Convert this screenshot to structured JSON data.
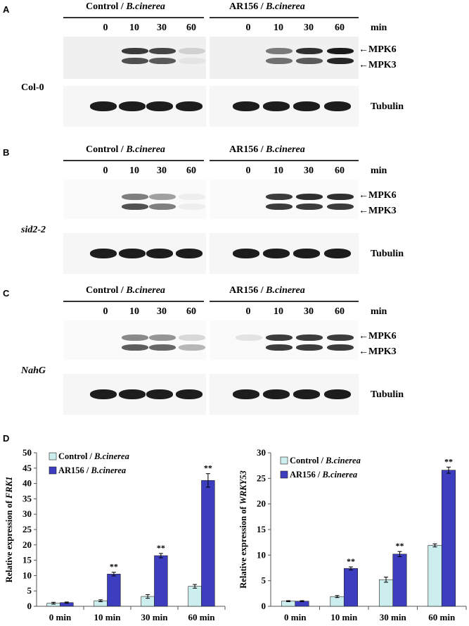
{
  "figure": {
    "panels": [
      {
        "letter": "A",
        "genotype": "Col-0",
        "genotype_italic": false,
        "control": {
          "strain": "Control",
          "sep": "/",
          "pathogen": "B.cinerea"
        },
        "treated": {
          "strain": "AR156",
          "sep": "/",
          "pathogen": "B.cinerea"
        },
        "timepoints": [
          "0",
          "10",
          "30",
          "60",
          "0",
          "10",
          "30",
          "60"
        ],
        "unit": "min",
        "markers": {
          "mpk6": "MPK6",
          "mpk3": "MPK3",
          "tubulin": "Tubulin"
        },
        "mpk6_intensity": [
          0,
          0.85,
          0.8,
          0.15,
          0,
          0.55,
          0.9,
          1.0
        ],
        "mpk3_intensity": [
          0,
          0.75,
          0.7,
          0.05,
          0,
          0.6,
          0.7,
          0.95
        ]
      },
      {
        "letter": "B",
        "genotype": "sid2-2",
        "genotype_italic": true,
        "control": {
          "strain": "Control",
          "sep": "/",
          "pathogen": "B.cinerea"
        },
        "treated": {
          "strain": "AR156",
          "sep": "/",
          "pathogen": "B.cinerea"
        },
        "timepoints": [
          "0",
          "10",
          "30",
          "60",
          "0",
          "10",
          "30",
          "60"
        ],
        "unit": "min",
        "markers": {
          "mpk6": "MPK6",
          "mpk3": "MPK3",
          "tubulin": "Tubulin"
        },
        "mpk6_intensity": [
          0,
          0.55,
          0.4,
          0.05,
          0,
          0.85,
          0.9,
          0.9
        ],
        "mpk3_intensity": [
          0,
          0.75,
          0.55,
          0.05,
          0,
          0.85,
          0.85,
          0.85
        ]
      },
      {
        "letter": "C",
        "genotype": "NahG",
        "genotype_italic": true,
        "control": {
          "strain": "Control",
          "sep": "/",
          "pathogen": "B.cinerea"
        },
        "treated": {
          "strain": "AR156",
          "sep": "/",
          "pathogen": "B.cinerea"
        },
        "timepoints": [
          "0",
          "10",
          "30",
          "60",
          "0",
          "10",
          "30",
          "60"
        ],
        "unit": "min",
        "markers": {
          "mpk6": "MPK6",
          "mpk3": "MPK3",
          "tubulin": "Tubulin"
        },
        "mpk6_intensity": [
          0,
          0.5,
          0.45,
          0.15,
          0.1,
          0.85,
          0.85,
          0.85
        ],
        "mpk3_intensity": [
          0,
          0.7,
          0.65,
          0.3,
          0,
          0.85,
          0.85,
          0.85
        ]
      }
    ],
    "panel_d_letter": "D"
  },
  "chart_data": [
    {
      "type": "bar",
      "ylabel_prefix": "Relative expression of ",
      "ylabel_gene": "FRK1",
      "categories": [
        "0 min",
        "10 min",
        "30 min",
        "60 min"
      ],
      "ylim": [
        0,
        50
      ],
      "yticks": [
        "0",
        "5",
        "10",
        "15",
        "20",
        "25",
        "30",
        "35",
        "40",
        "45",
        "50"
      ],
      "series": [
        {
          "name_strain": "Control",
          "name_pathogen": "B.cinerea",
          "color": "#cdeeee",
          "values": [
            1.0,
            1.8,
            3.2,
            6.5
          ],
          "errors": [
            0.3,
            0.3,
            0.6,
            0.6
          ]
        },
        {
          "name_strain": "AR156",
          "name_pathogen": "B.cinerea",
          "color": "#3d3dbf",
          "values": [
            1.2,
            10.5,
            16.5,
            41.0
          ],
          "errors": [
            0.2,
            0.6,
            0.7,
            2.2
          ]
        }
      ],
      "significance": [
        "",
        "**",
        "**",
        "**"
      ]
    },
    {
      "type": "bar",
      "ylabel_prefix": "Relative expression of ",
      "ylabel_gene": "WRKY53",
      "categories": [
        "0 min",
        "10 min",
        "30 min",
        "60 min"
      ],
      "ylim": [
        0,
        30
      ],
      "yticks": [
        "0",
        "5",
        "10",
        "15",
        "20",
        "25",
        "30"
      ],
      "series": [
        {
          "name_strain": "Control",
          "name_pathogen": "B.cinerea",
          "color": "#cdeeee",
          "values": [
            1.0,
            1.9,
            5.2,
            11.9
          ],
          "errors": [
            0.1,
            0.2,
            0.5,
            0.3
          ]
        },
        {
          "name_strain": "AR156",
          "name_pathogen": "B.cinerea",
          "color": "#3d3dbf",
          "values": [
            1.0,
            7.4,
            10.2,
            26.6
          ],
          "errors": [
            0.1,
            0.3,
            0.5,
            0.6
          ]
        }
      ],
      "significance": [
        "",
        "**",
        "**",
        "**"
      ]
    }
  ]
}
